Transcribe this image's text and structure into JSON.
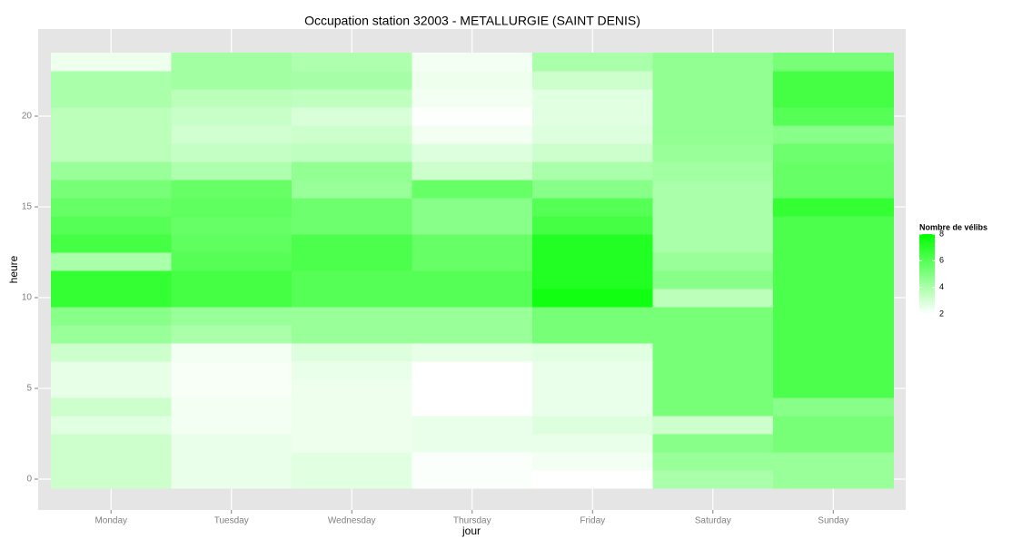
{
  "chart_data": {
    "type": "heatmap",
    "title": "Occupation station 32003 - METALLURGIE (SAINT DENIS)",
    "xlabel": "jour",
    "ylabel": "heure",
    "categories": [
      "Monday",
      "Tuesday",
      "Wednesday",
      "Thursday",
      "Friday",
      "Saturday",
      "Sunday"
    ],
    "hours": [
      0,
      1,
      2,
      3,
      4,
      5,
      6,
      7,
      8,
      9,
      10,
      11,
      12,
      13,
      14,
      15,
      16,
      17,
      18,
      19,
      20,
      21,
      22,
      23
    ],
    "values": [
      [
        3.2,
        3.2,
        3.2,
        2.7,
        3.2,
        2.6,
        2.6,
        3.2,
        4.4,
        4.8,
        6.8,
        6.8,
        4,
        6.4,
        6,
        5.6,
        5.2,
        4.4,
        3.6,
        3.6,
        3.6,
        4,
        4,
        2.4
      ],
      [
        2.5,
        2.5,
        2.5,
        2.3,
        2.3,
        2.2,
        2.2,
        2.3,
        4,
        4.4,
        6.4,
        6.4,
        6,
        5.8,
        5.6,
        5.8,
        5.6,
        3.9,
        3.4,
        3.1,
        3.3,
        3.6,
        4.2,
        4.2
      ],
      [
        2.7,
        2.7,
        2.4,
        2.4,
        2.4,
        2.4,
        2.5,
        2.8,
        4.4,
        4.4,
        6,
        6,
        6.2,
        6.2,
        5.4,
        5.4,
        4.4,
        4.6,
        3.5,
        3.2,
        2.9,
        3.5,
        4.1,
        3.9
      ],
      [
        2.1,
        2.1,
        2.5,
        2.5,
        2,
        2,
        2,
        2.6,
        4.4,
        4.4,
        6,
        6,
        5.6,
        5.6,
        4.8,
        4.8,
        5.6,
        3.2,
        2.8,
        2.3,
        2.05,
        2.3,
        2.4,
        2.3
      ],
      [
        2,
        2.3,
        2.5,
        2.8,
        2.5,
        2.5,
        2.5,
        2.7,
        5.2,
        5.2,
        7.6,
        7.2,
        7.2,
        7.2,
        6.4,
        6,
        4.8,
        4,
        3.2,
        2.8,
        2.7,
        2.7,
        3.2,
        4
      ],
      [
        4,
        4.4,
        4.8,
        3.2,
        5.2,
        5.2,
        5.2,
        5.2,
        5.2,
        5.2,
        3.6,
        4.8,
        4.4,
        4,
        4,
        4,
        4,
        4.2,
        4.4,
        4.6,
        4.6,
        4.6,
        4.6,
        4.6
      ],
      [
        4.4,
        4.4,
        5.2,
        5.2,
        4.8,
        6.2,
        6.2,
        6.2,
        6.2,
        6.2,
        6.2,
        6.2,
        6.2,
        6.2,
        6.2,
        6.8,
        5.6,
        5.6,
        5.4,
        4.8,
        6,
        6.4,
        6.4,
        5.2
      ]
    ],
    "ylim": [
      -1.7,
      24.8
    ],
    "yticks": [
      0,
      5,
      10,
      15,
      20
    ],
    "grid": true,
    "legend": {
      "title": "Nombre de vélibs",
      "low": "#ffffff",
      "high": "#00ff00",
      "limits": [
        2,
        8
      ],
      "ticks": [
        2,
        4,
        6,
        8
      ],
      "position": "right"
    }
  }
}
